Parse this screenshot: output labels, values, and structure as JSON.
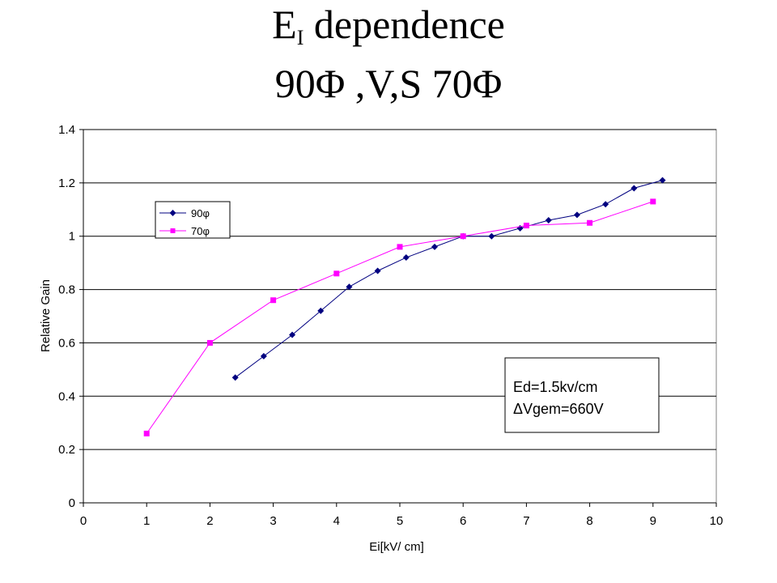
{
  "page": {
    "title_main": "E",
    "title_sub": "I",
    "title_rest": " dependence",
    "title_line2": "90Φ ,V,S 70Φ"
  },
  "chart_data": {
    "type": "line",
    "xlabel": "Ei[kV/ cm]",
    "ylabel": "Relative Gain",
    "xlim": [
      0,
      10
    ],
    "ylim": [
      0,
      1.4
    ],
    "xticks": [
      "0",
      "1",
      "2",
      "3",
      "4",
      "5",
      "6",
      "7",
      "8",
      "9",
      "10"
    ],
    "yticks": [
      "0",
      "0.2",
      "0.4",
      "0.6",
      "0.8",
      "1",
      "1.2",
      "1.4"
    ],
    "grid": "horizontal",
    "legend_position": "upper-left",
    "series": [
      {
        "name": "90φ",
        "color": "#000080",
        "marker": "diamond",
        "x": [
          2.4,
          2.85,
          3.3,
          3.75,
          4.2,
          4.65,
          5.1,
          5.55,
          6.0,
          6.45,
          6.9,
          7.35,
          7.8,
          8.25,
          8.7,
          9.15
        ],
        "y": [
          0.47,
          0.55,
          0.63,
          0.72,
          0.81,
          0.87,
          0.92,
          0.96,
          1.0,
          1.0,
          1.03,
          1.06,
          1.08,
          1.12,
          1.18,
          1.21
        ]
      },
      {
        "name": "70φ",
        "color": "#FF00FF",
        "marker": "square",
        "x": [
          1,
          2,
          3,
          4,
          5,
          6,
          7,
          8,
          9
        ],
        "y": [
          0.26,
          0.6,
          0.76,
          0.86,
          0.96,
          1.0,
          1.04,
          1.05,
          1.13
        ]
      }
    ],
    "annotation": [
      "Ed=1.5kv/cm",
      "ΔVgem=660V"
    ]
  }
}
